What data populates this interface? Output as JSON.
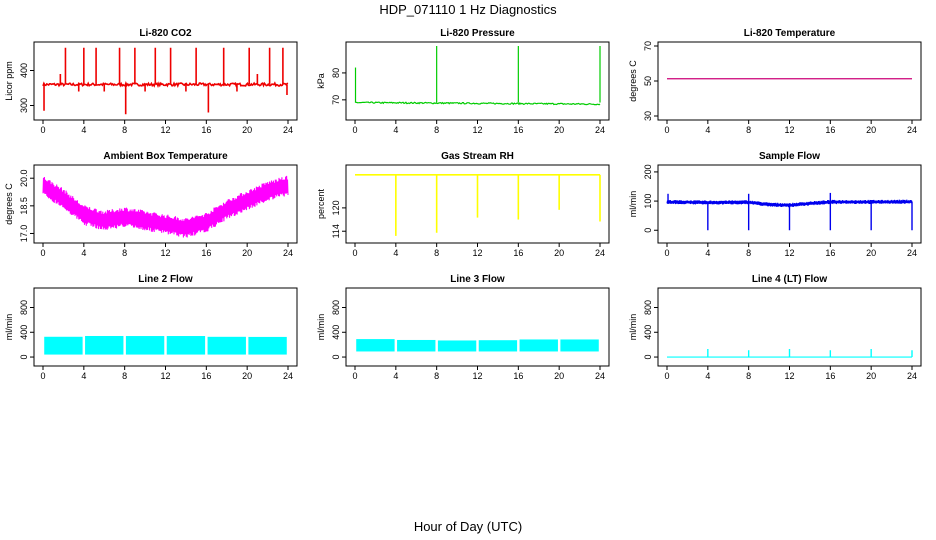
{
  "page": {
    "title": "HDP_071110  1 Hz Diagnostics",
    "x_caption": "Hour of Day (UTC)"
  },
  "chart_data": [
    {
      "type": "line",
      "title": "Li-820 CO2",
      "xlabel": "",
      "ylabel": "Licor ppm",
      "color": "#ee0000",
      "xlim": [
        0,
        24
      ],
      "ylim": [
        270,
        470
      ],
      "x_ticks": [
        0,
        4,
        8,
        12,
        16,
        20,
        24
      ],
      "y_ticks": [
        300,
        400
      ],
      "baseline": 360,
      "noise": 4,
      "events": [
        {
          "x": 0.1,
          "y": 285
        },
        {
          "x": 1.7,
          "y": 390
        },
        {
          "x": 2.2,
          "y": 465
        },
        {
          "x": 3.5,
          "y": 340
        },
        {
          "x": 4.0,
          "y": 465
        },
        {
          "x": 5.2,
          "y": 465
        },
        {
          "x": 6.0,
          "y": 340
        },
        {
          "x": 7.5,
          "y": 465
        },
        {
          "x": 8.1,
          "y": 275
        },
        {
          "x": 9.0,
          "y": 465
        },
        {
          "x": 10.0,
          "y": 340
        },
        {
          "x": 11.0,
          "y": 465
        },
        {
          "x": 12.5,
          "y": 465
        },
        {
          "x": 14.0,
          "y": 340
        },
        {
          "x": 15.0,
          "y": 465
        },
        {
          "x": 16.2,
          "y": 280
        },
        {
          "x": 17.7,
          "y": 465
        },
        {
          "x": 19.0,
          "y": 340
        },
        {
          "x": 20.2,
          "y": 465
        },
        {
          "x": 21.0,
          "y": 390
        },
        {
          "x": 22.2,
          "y": 465
        },
        {
          "x": 23.5,
          "y": 465
        },
        {
          "x": 23.9,
          "y": 330
        }
      ]
    },
    {
      "type": "line",
      "title": "Li-820 Pressure",
      "xlabel": "",
      "ylabel": "kPa",
      "color": "#00cc00",
      "xlim": [
        0,
        24
      ],
      "ylim": [
        64,
        90
      ],
      "x_ticks": [
        0,
        4,
        8,
        12,
        16,
        20,
        24
      ],
      "y_ticks": [
        70,
        80
      ],
      "start": 69.0,
      "end": 68.4,
      "noise": 0.25,
      "events": [
        {
          "x": 0.05,
          "y": 82
        },
        {
          "x": 8.0,
          "y": 90
        },
        {
          "x": 16.0,
          "y": 90
        },
        {
          "x": 24.0,
          "y": 90
        }
      ]
    },
    {
      "type": "line",
      "title": "Li-820 Temperature",
      "xlabel": "",
      "ylabel": "degrees C",
      "color": "#cc0077",
      "xlim": [
        0,
        24
      ],
      "ylim": [
        30,
        70
      ],
      "x_ticks": [
        0,
        4,
        8,
        12,
        16,
        20,
        24
      ],
      "y_ticks": [
        30,
        50,
        70
      ],
      "value": 51.3
    },
    {
      "type": "line",
      "title": "Ambient Box Temperature",
      "xlabel": "",
      "ylabel": "degrees C",
      "color": "#ff00ff",
      "xlim": [
        0,
        24
      ],
      "ylim": [
        16.7,
        20.5
      ],
      "x_ticks": [
        0,
        4,
        8,
        12,
        16,
        20,
        24
      ],
      "y_ticks": [
        17.0,
        18.5,
        20.0
      ],
      "y_tick_labels": [
        "17.0",
        "18.5",
        "20.0"
      ],
      "trend": [
        {
          "x": 0,
          "y": 19.6
        },
        {
          "x": 2,
          "y": 18.9
        },
        {
          "x": 4,
          "y": 18.0
        },
        {
          "x": 6,
          "y": 17.7
        },
        {
          "x": 8,
          "y": 17.9
        },
        {
          "x": 10,
          "y": 17.7
        },
        {
          "x": 12,
          "y": 17.5
        },
        {
          "x": 14,
          "y": 17.3
        },
        {
          "x": 16,
          "y": 17.6
        },
        {
          "x": 18,
          "y": 18.3
        },
        {
          "x": 20,
          "y": 18.8
        },
        {
          "x": 22,
          "y": 19.3
        },
        {
          "x": 24,
          "y": 19.6
        }
      ],
      "band": 0.55
    },
    {
      "type": "line",
      "title": "Gas Stream RH",
      "xlabel": "",
      "ylabel": "percent",
      "color": "#ffff00",
      "xlim": [
        0,
        24
      ],
      "ylim": [
        112,
        130
      ],
      "x_ticks": [
        0,
        4,
        8,
        12,
        16,
        20,
        24
      ],
      "y_ticks": [
        114,
        120
      ],
      "value": 128.5,
      "events": [
        {
          "x": 4.0,
          "y": 112.8
        },
        {
          "x": 8.0,
          "y": 113.6
        },
        {
          "x": 12.0,
          "y": 117.5
        },
        {
          "x": 16.0,
          "y": 117.0
        },
        {
          "x": 20.0,
          "y": 119.5
        },
        {
          "x": 24.0,
          "y": 116.5
        }
      ]
    },
    {
      "type": "line",
      "title": "Sample Flow",
      "xlabel": "",
      "ylabel": "ml/min",
      "color": "#0000ee",
      "xlim": [
        0,
        24
      ],
      "ylim": [
        -30,
        210
      ],
      "x_ticks": [
        0,
        4,
        8,
        12,
        16,
        20,
        24
      ],
      "y_ticks": [
        0,
        100,
        200
      ],
      "trend": [
        {
          "x": 0,
          "y": 97
        },
        {
          "x": 4,
          "y": 95
        },
        {
          "x": 8,
          "y": 96
        },
        {
          "x": 10,
          "y": 88
        },
        {
          "x": 12,
          "y": 86
        },
        {
          "x": 14,
          "y": 92
        },
        {
          "x": 16,
          "y": 97
        },
        {
          "x": 20,
          "y": 97
        },
        {
          "x": 24,
          "y": 98
        }
      ],
      "band": 14,
      "events_low": [
        4.0,
        8.0,
        12.0,
        16.0,
        20.0,
        24.0
      ],
      "events_high": [
        {
          "x": 0.1,
          "y": 125
        },
        {
          "x": 8.0,
          "y": 125
        },
        {
          "x": 16.0,
          "y": 128
        }
      ]
    },
    {
      "type": "area",
      "title": "Line 2 Flow",
      "xlabel": "",
      "ylabel": "ml/min",
      "color": "#00ffff",
      "xlim": [
        0,
        24
      ],
      "ylim": [
        -80,
        1050
      ],
      "x_ticks": [
        0,
        4,
        8,
        12,
        16,
        20,
        24
      ],
      "y_ticks": [
        0,
        400,
        800
      ],
      "band_low": 40,
      "band_high": 330,
      "gaps": [
        4.0,
        8.0,
        12.0,
        16.0,
        20.0
      ]
    },
    {
      "type": "area",
      "title": "Line 3 Flow",
      "xlabel": "",
      "ylabel": "ml/min",
      "color": "#00ffff",
      "xlim": [
        0,
        24
      ],
      "ylim": [
        -80,
        1050
      ],
      "x_ticks": [
        0,
        4,
        8,
        12,
        16,
        20,
        24
      ],
      "y_ticks": [
        0,
        400,
        800
      ],
      "band_low": 90,
      "band_high": 280,
      "gaps": [
        4.0,
        8.0,
        12.0,
        16.0,
        20.0
      ]
    },
    {
      "type": "line",
      "title": "Line 4 (LT) Flow",
      "xlabel": "",
      "ylabel": "ml/min",
      "color": "#00ffff",
      "xlim": [
        0,
        24
      ],
      "ylim": [
        -80,
        1050
      ],
      "x_ticks": [
        0,
        4,
        8,
        12,
        16,
        20,
        24
      ],
      "y_ticks": [
        0,
        400,
        800
      ],
      "value": 0,
      "events": [
        {
          "x": 4.0,
          "y": 130
        },
        {
          "x": 8.0,
          "y": 110
        },
        {
          "x": 12.0,
          "y": 130
        },
        {
          "x": 16.0,
          "y": 110
        },
        {
          "x": 20.0,
          "y": 130
        },
        {
          "x": 24.0,
          "y": 110
        }
      ]
    }
  ]
}
